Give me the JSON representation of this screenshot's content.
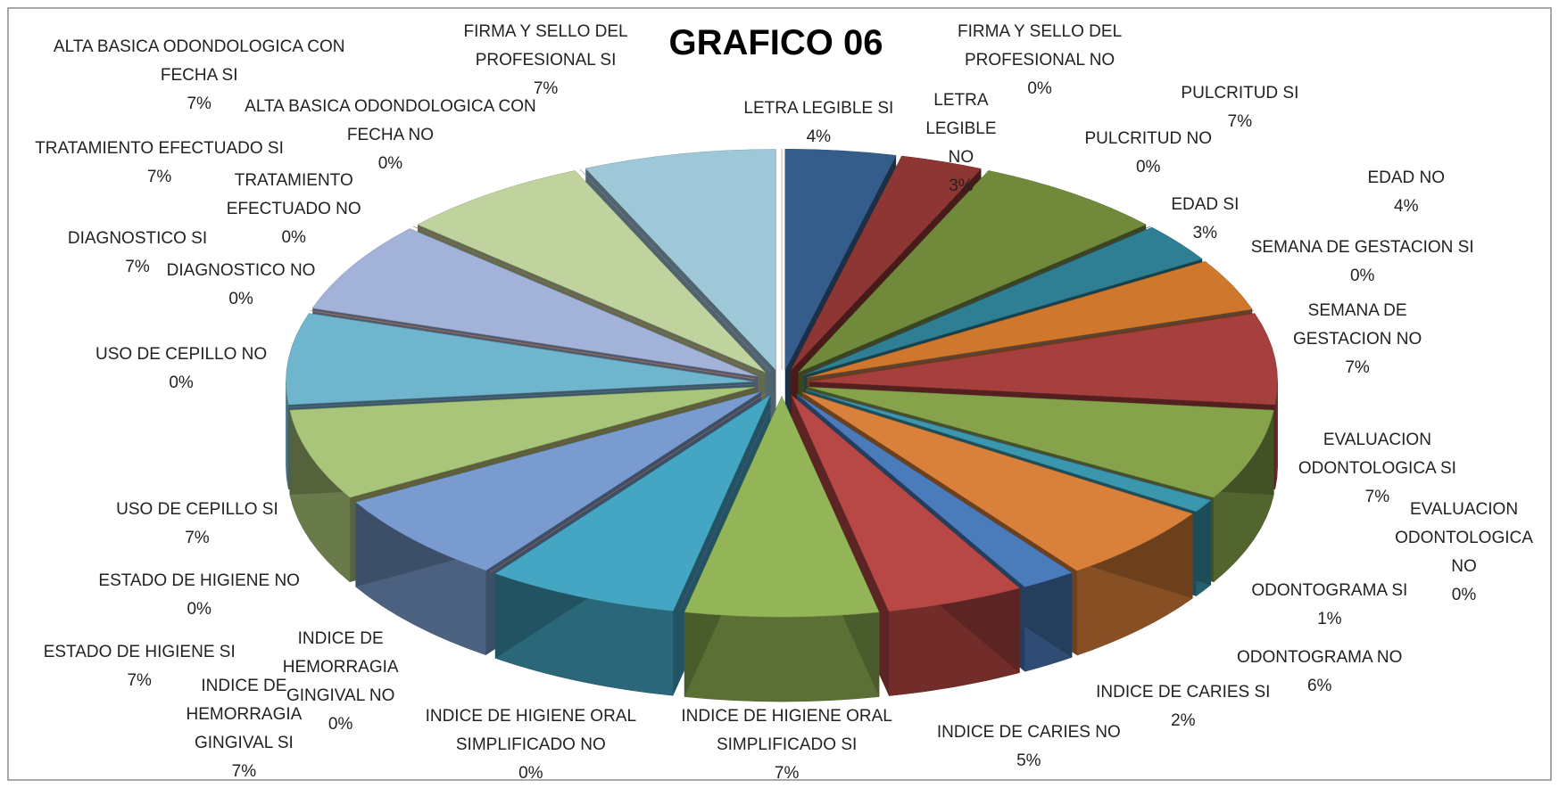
{
  "chart_data": {
    "type": "pie3d",
    "title": "GRAFICO 06",
    "categories": [
      "LETRA LEGIBLE SI",
      "LETRA LEGIBLE NO",
      "PULCRITUD SI",
      "PULCRITUD NO",
      "EDAD SI",
      "EDAD NO",
      "SEMANA DE GESTACION  SI",
      "SEMANA DE GESTACION  NO",
      "EVALUACION ODONTOLOGICA SI",
      "EVALUACION ODONTOLOGICA NO",
      "ODONTOGRAMA SI",
      "ODONTOGRAMA NO",
      "INDICE DE CARIES  SI",
      "INDICE DE CARIES  NO",
      "INDICE DE HIGIENE  ORAL SIMPLIFICADO  SI",
      "INDICE DE HIGIENE  ORAL SIMPLIFICADO  NO",
      "INDICE DE HEMORRAGIA GINGIVAL SI",
      "INDICE DE HEMORRAGIA GINGIVAL NO",
      "ESTADO DE HIGIENE SI",
      "ESTADO DE HIGIENE NO",
      "USO DE CEPILLO SI",
      "USO DE CEPILLO NO",
      "DIAGNOSTICO SI",
      "DIAGNOSTICO NO",
      "TRATAMIENTO EFECTUADO SI",
      "TRATAMIENTO EFECTUADO NO",
      "ALTA BASICA ODONDOLOGICA CON FECHA SI",
      "ALTA BASICA ODONDOLOGICA CON FECHA NO",
      "FIRMA Y SELLO DEL PROFESIONAL SI",
      "FIRMA Y SELLO DEL PROFESIONAL NO"
    ],
    "values": [
      4,
      3,
      7,
      0,
      3,
      4,
      0,
      7,
      7,
      0,
      1,
      6,
      2,
      5,
      7,
      0,
      7,
      0,
      7,
      0,
      7,
      0,
      7,
      0,
      7,
      0,
      7,
      0,
      7,
      0
    ],
    "value_labels": [
      "4%",
      "3%",
      "7%",
      "0%",
      "3%",
      "4%",
      "0%",
      "7%",
      "7%",
      "0%",
      "1%",
      "6%",
      "2%",
      "5%",
      "7%",
      "0%",
      "7%",
      "0%",
      "7%",
      "0%",
      "7%",
      "0%",
      "7%",
      "0%",
      "7%",
      "0%",
      "7%",
      "0%",
      "7%",
      "0%"
    ],
    "colors": [
      "#355d8c",
      "#8e3634",
      "#71893a",
      "#5e4a7a",
      "#2f7f94",
      "#d0772e",
      "#3e6aa0",
      "#a6403e",
      "#86a34b",
      "#6f5690",
      "#3b97ae",
      "#d9803a",
      "#4a7bbb",
      "#b84845",
      "#94b557",
      "#7c61a0",
      "#44a6c3",
      "#e3873d",
      "#7a9bcf",
      "#c45a57",
      "#a9c579",
      "#8f78b1",
      "#6fb5cd",
      "#e89b5b",
      "#a3b2d9",
      "#c87a78",
      "#c0d39e",
      "#a896c3",
      "#9ec7d8",
      "#efb98a"
    ]
  }
}
